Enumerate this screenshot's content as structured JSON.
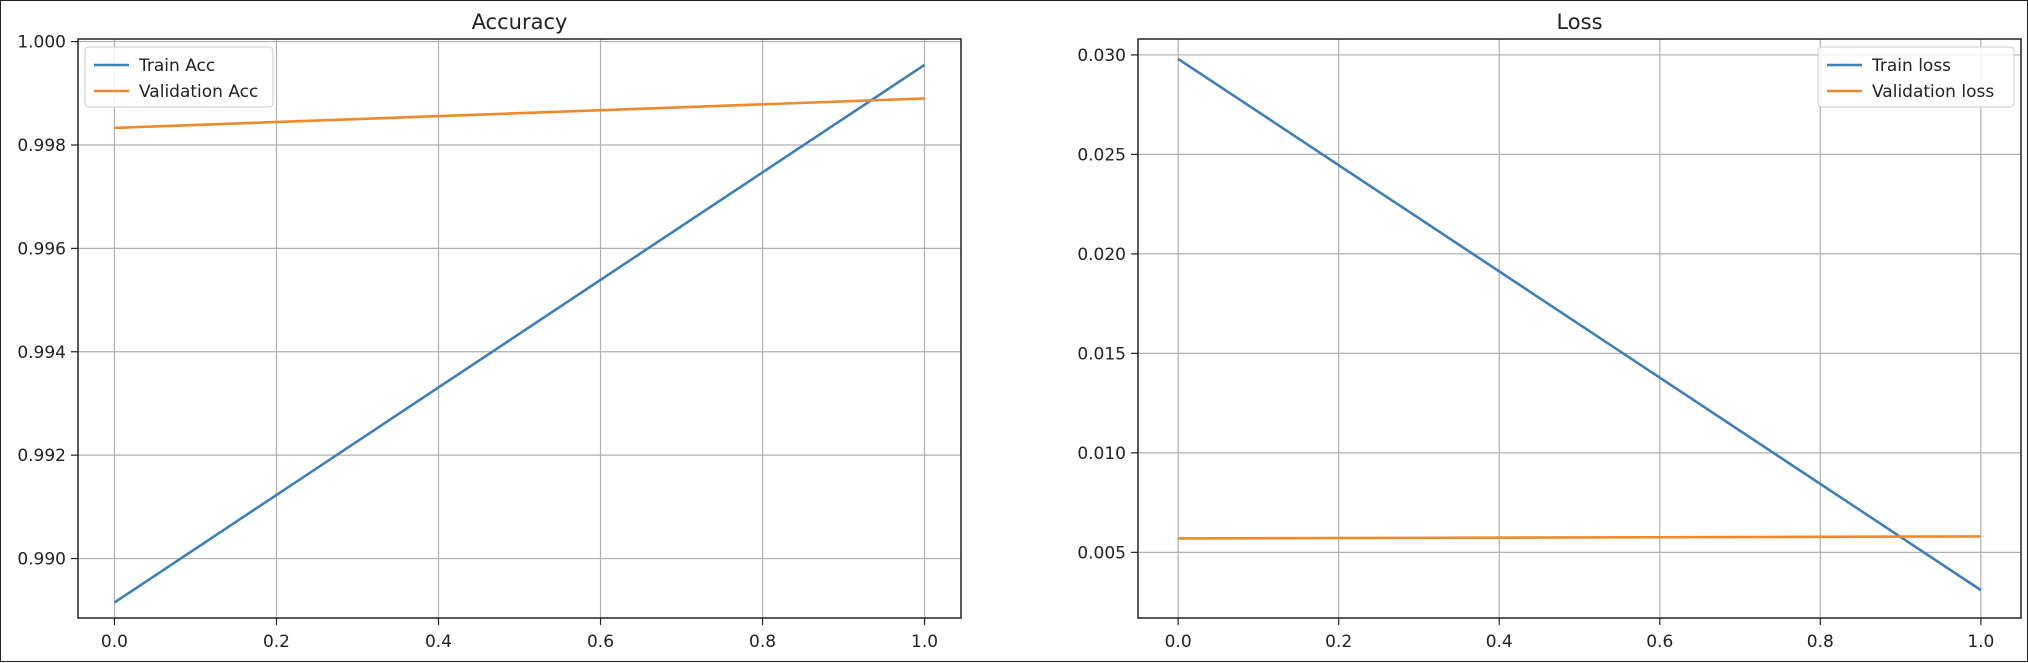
{
  "colors": {
    "train": "#3f7fb8",
    "validation": "#ef8a2c",
    "grid": "#b0b0b0",
    "frame": "#222222"
  },
  "chart_data": [
    {
      "type": "line",
      "title": "Accuracy",
      "xlabel": "",
      "ylabel": "",
      "x": [
        0.0,
        1.0
      ],
      "xlim": [
        -0.045,
        1.045
      ],
      "ylim": [
        0.98885,
        1.00005
      ],
      "xticks": [
        0.0,
        0.2,
        0.4,
        0.6,
        0.8,
        1.0
      ],
      "xtick_labels": [
        "0.0",
        "0.2",
        "0.4",
        "0.6",
        "0.8",
        "1.0"
      ],
      "yticks": [
        0.99,
        0.992,
        0.994,
        0.996,
        0.998,
        1.0
      ],
      "ytick_labels": [
        "0.990",
        "0.992",
        "0.994",
        "0.996",
        "0.998",
        "1.000"
      ],
      "grid": true,
      "legend_position": "top-left",
      "series": [
        {
          "name": "Train Acc",
          "color": "#3f7fb8",
          "values": [
            0.98915,
            0.99955
          ]
        },
        {
          "name": "Validation Acc",
          "color": "#ef8a2c",
          "values": [
            0.99833,
            0.9989
          ]
        }
      ]
    },
    {
      "type": "line",
      "title": "Loss",
      "xlabel": "",
      "ylabel": "",
      "x": [
        0.0,
        1.0
      ],
      "xlim": [
        -0.05,
        1.05
      ],
      "ylim": [
        0.0017,
        0.0308
      ],
      "xticks": [
        0.0,
        0.2,
        0.4,
        0.6,
        0.8,
        1.0
      ],
      "xtick_labels": [
        "0.0",
        "0.2",
        "0.4",
        "0.6",
        "0.8",
        "1.0"
      ],
      "yticks": [
        0.005,
        0.01,
        0.015,
        0.02,
        0.025,
        0.03
      ],
      "ytick_labels": [
        "0.005",
        "0.010",
        "0.015",
        "0.020",
        "0.025",
        "0.030"
      ],
      "grid": true,
      "legend_position": "top-right",
      "series": [
        {
          "name": "Train loss",
          "color": "#3f7fb8",
          "values": [
            0.0298,
            0.0031
          ]
        },
        {
          "name": "Validation loss",
          "color": "#ef8a2c",
          "values": [
            0.0057,
            0.0058
          ]
        }
      ]
    }
  ]
}
